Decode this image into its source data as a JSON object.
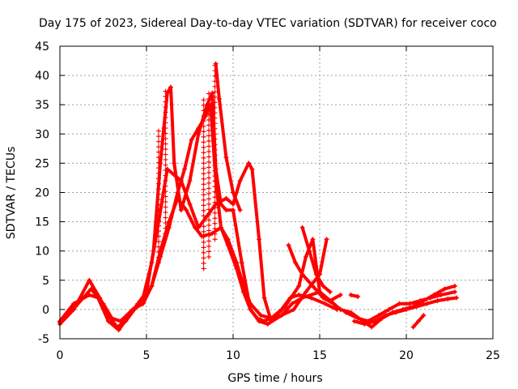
{
  "chart_data": {
    "type": "scatter",
    "title": "Day 175 of 2023, Sidereal Day-to-day VTEC variation (SDTVAR) for receiver coco",
    "xlabel": "GPS time / hours",
    "ylabel": "SDTVAR / TECUs",
    "xlim": [
      0,
      25
    ],
    "ylim": [
      -5,
      45
    ],
    "xticks": [
      0,
      5,
      10,
      15,
      20,
      25
    ],
    "yticks": [
      -5,
      0,
      5,
      10,
      15,
      20,
      25,
      30,
      35,
      40,
      45
    ],
    "grid": true,
    "marker": "plus",
    "color": "#ff0000",
    "series": [
      {
        "name": "track-1",
        "points": [
          [
            0,
            -2.5
          ],
          [
            0.8,
            0
          ],
          [
            1.7,
            5
          ],
          [
            2.3,
            2
          ],
          [
            2.8,
            -1
          ],
          [
            3.3,
            -3
          ],
          [
            3.8,
            -2
          ],
          [
            4.3,
            0
          ],
          [
            4.8,
            2
          ],
          [
            5.3,
            8
          ],
          [
            5.7,
            15
          ],
          [
            6.2,
            24
          ],
          [
            6.6,
            23
          ],
          [
            7.0,
            22
          ],
          [
            7.5,
            18
          ],
          [
            8.0,
            14
          ],
          [
            8.5,
            16
          ],
          [
            9.0,
            18
          ],
          [
            9.6,
            19
          ],
          [
            10.0,
            18
          ],
          [
            10.4,
            22
          ],
          [
            10.9,
            25
          ],
          [
            11.1,
            24
          ],
          [
            11.5,
            12
          ],
          [
            11.8,
            2
          ],
          [
            12.2,
            -2
          ],
          [
            12.8,
            -1
          ],
          [
            13.4,
            1
          ],
          [
            14.0,
            2
          ],
          [
            15.0,
            3
          ],
          [
            15.8,
            1
          ],
          [
            16.2,
            0
          ]
        ]
      },
      {
        "name": "track-2",
        "points": [
          [
            0,
            -2
          ],
          [
            0.8,
            1
          ],
          [
            1.7,
            2.5
          ],
          [
            2.2,
            2
          ],
          [
            2.8,
            -2
          ],
          [
            3.4,
            -3.5
          ],
          [
            4.0,
            -1
          ],
          [
            4.5,
            1
          ],
          [
            5.0,
            3
          ],
          [
            5.4,
            10
          ],
          [
            5.8,
            25
          ],
          [
            6.0,
            31
          ],
          [
            6.2,
            37
          ],
          [
            6.4,
            38
          ],
          [
            6.6,
            25
          ],
          [
            7.0,
            17
          ],
          [
            7.5,
            22
          ],
          [
            8.0,
            30
          ],
          [
            8.5,
            35
          ],
          [
            8.8,
            37
          ],
          [
            9.0,
            24
          ],
          [
            9.3,
            18
          ],
          [
            9.6,
            17
          ],
          [
            10.0,
            17
          ],
          [
            10.5,
            8
          ],
          [
            11.0,
            0
          ],
          [
            11.5,
            -2
          ],
          [
            12.0,
            -2.5
          ],
          [
            12.8,
            -1
          ],
          [
            13.5,
            0
          ],
          [
            14.2,
            3
          ],
          [
            15.0,
            6
          ],
          [
            15.4,
            12
          ]
        ]
      },
      {
        "name": "track-3",
        "points": [
          [
            0,
            -2.2
          ],
          [
            0.9,
            0.5
          ],
          [
            1.8,
            3.5
          ],
          [
            2.5,
            1
          ],
          [
            3.0,
            -1.5
          ],
          [
            3.5,
            -2
          ],
          [
            4.2,
            0
          ],
          [
            4.8,
            1
          ],
          [
            5.3,
            4
          ],
          [
            5.8,
            9
          ],
          [
            6.3,
            14
          ],
          [
            6.8,
            20
          ],
          [
            7.2,
            24
          ],
          [
            7.6,
            29
          ],
          [
            8.0,
            31
          ],
          [
            8.4,
            33
          ],
          [
            8.7,
            35
          ],
          [
            9.0,
            22
          ],
          [
            9.3,
            14
          ],
          [
            9.7,
            11
          ],
          [
            10.2,
            7
          ],
          [
            10.6,
            3
          ],
          [
            11.0,
            0
          ],
          [
            11.4,
            -1.5
          ],
          [
            11.8,
            -2
          ],
          [
            12.5,
            -1
          ],
          [
            13.0,
            0.5
          ],
          [
            13.8,
            4
          ],
          [
            14.2,
            9
          ],
          [
            14.6,
            12
          ],
          [
            15.0,
            3
          ],
          [
            15.6,
            1.5
          ],
          [
            16.2,
            2.5
          ]
        ]
      },
      {
        "name": "track-4",
        "points": [
          [
            4.8,
            1
          ],
          [
            5.3,
            4
          ],
          [
            5.8,
            10
          ],
          [
            6.3,
            15
          ],
          [
            6.8,
            19
          ],
          [
            7.3,
            17
          ],
          [
            7.8,
            14
          ],
          [
            8.2,
            12.5
          ],
          [
            8.8,
            13
          ],
          [
            9.3,
            14
          ],
          [
            9.7,
            12
          ],
          [
            10.2,
            8
          ],
          [
            10.6,
            4
          ],
          [
            11.0,
            1
          ],
          [
            11.6,
            -1
          ],
          [
            12.2,
            -1.5
          ],
          [
            12.8,
            0
          ],
          [
            13.3,
            2
          ],
          [
            13.8,
            2.5
          ],
          [
            14.5,
            2
          ],
          [
            15.3,
            1
          ],
          [
            16.0,
            0
          ]
        ]
      },
      {
        "name": "track-5",
        "points": [
          [
            9.0,
            42
          ],
          [
            9.2,
            36
          ],
          [
            9.6,
            26
          ],
          [
            10.0,
            20
          ],
          [
            10.4,
            17
          ]
        ]
      },
      {
        "name": "track-6",
        "points": [
          [
            13.2,
            11
          ],
          [
            13.6,
            8
          ],
          [
            14.0,
            6
          ],
          [
            14.6,
            4
          ],
          [
            15.2,
            2
          ],
          [
            15.8,
            1
          ]
        ]
      },
      {
        "name": "track-7",
        "points": [
          [
            14.0,
            14
          ],
          [
            14.4,
            10
          ],
          [
            14.8,
            6
          ],
          [
            15.2,
            4
          ],
          [
            15.6,
            3
          ]
        ]
      },
      {
        "name": "track-8",
        "points": [
          [
            16.8,
            2.5
          ],
          [
            17.2,
            2.2
          ]
        ]
      },
      {
        "name": "track-9",
        "points": [
          [
            16.2,
            0
          ],
          [
            16.8,
            -0.5
          ],
          [
            17.5,
            -2
          ],
          [
            18.0,
            -3
          ],
          [
            18.6,
            -1.5
          ],
          [
            19.2,
            -0.5
          ],
          [
            19.8,
            0
          ],
          [
            20.4,
            0.5
          ],
          [
            21.0,
            1.5
          ],
          [
            21.6,
            2.5
          ],
          [
            22.2,
            3.5
          ],
          [
            22.8,
            4
          ]
        ]
      },
      {
        "name": "track-10",
        "points": [
          [
            16.5,
            -0.5
          ],
          [
            17.2,
            -1.5
          ],
          [
            17.8,
            -2
          ],
          [
            18.4,
            -1
          ],
          [
            19.0,
            0
          ],
          [
            19.6,
            1
          ],
          [
            20.2,
            1
          ],
          [
            20.8,
            1.5
          ],
          [
            21.4,
            2
          ],
          [
            22.0,
            2.5
          ],
          [
            22.8,
            3
          ]
        ]
      },
      {
        "name": "track-11",
        "points": [
          [
            17.0,
            -2
          ],
          [
            17.6,
            -2.5
          ],
          [
            18.2,
            -2
          ],
          [
            18.8,
            -1
          ],
          [
            19.4,
            -0.5
          ],
          [
            20.0,
            0
          ],
          [
            20.6,
            0.5
          ],
          [
            21.2,
            1
          ],
          [
            21.8,
            1.5
          ],
          [
            22.4,
            1.8
          ],
          [
            22.9,
            2
          ]
        ]
      },
      {
        "name": "track-12",
        "points": [
          [
            20.4,
            -3
          ],
          [
            20.7,
            -2
          ],
          [
            21.0,
            -1
          ]
        ]
      }
    ],
    "spikes": [
      {
        "name": "spike-1",
        "x": 5.7,
        "low": 8,
        "high": 31
      },
      {
        "name": "spike-2",
        "x": 6.1,
        "low": 13,
        "high": 38
      },
      {
        "name": "spike-3",
        "x": 8.3,
        "low": 7,
        "high": 36
      },
      {
        "name": "spike-4",
        "x": 8.6,
        "low": 9,
        "high": 37
      },
      {
        "name": "spike-5",
        "x": 8.95,
        "low": 12,
        "high": 42
      }
    ]
  }
}
